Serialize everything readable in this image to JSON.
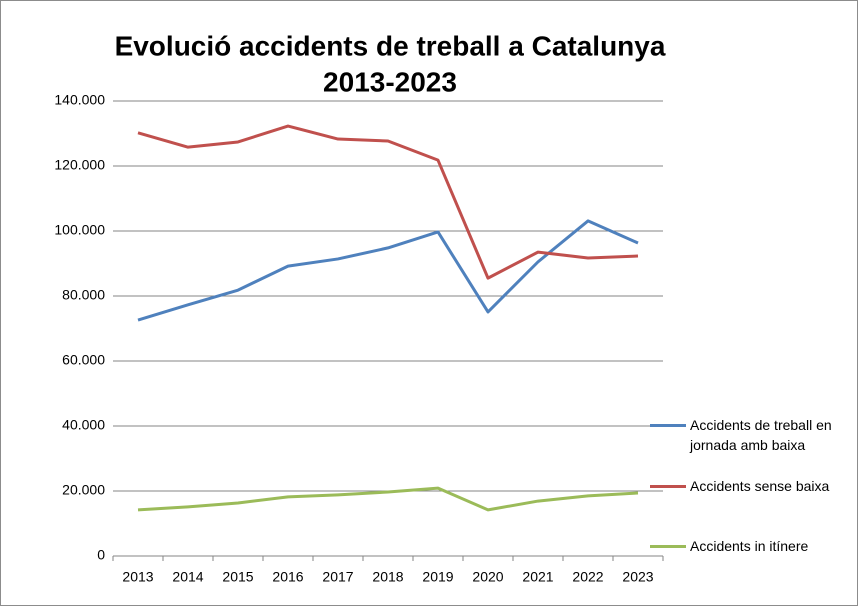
{
  "chart_data": {
    "type": "line",
    "title": [
      "Evolució accidents de treball a Catalunya",
      "2013-2023"
    ],
    "categories": [
      "2013",
      "2014",
      "2015",
      "2016",
      "2017",
      "2018",
      "2019",
      "2020",
      "2021",
      "2022",
      "2023"
    ],
    "series": [
      {
        "name": "Accidents de treball en jornada amb baixa",
        "color": "#4f81bd",
        "values": [
          72600,
          77300,
          81800,
          89200,
          91400,
          94800,
          99700,
          75100,
          90500,
          103100,
          96300
        ]
      },
      {
        "name": "Accidents sense baixa",
        "color": "#c0504d",
        "values": [
          130200,
          125800,
          127400,
          132300,
          128300,
          127700,
          121800,
          85500,
          93500,
          91700,
          92300
        ]
      },
      {
        "name": "Accidents in itínere",
        "color": "#9bbb59",
        "values": [
          14200,
          15100,
          16300,
          18200,
          18800,
          19700,
          20900,
          14200,
          16900,
          18500,
          19400
        ]
      }
    ],
    "ylim": [
      0,
      140000
    ],
    "yticks": [
      0,
      {
        "value": 20000,
        "label": "20.000"
      },
      {
        "value": 40000,
        "label": "40.000"
      },
      {
        "value": 60000,
        "label": "60.000"
      },
      {
        "value": 80000,
        "label": "80.000"
      },
      {
        "value": 100000,
        "label": "100.000"
      },
      {
        "value": 120000,
        "label": "120.000"
      },
      {
        "value": 140000,
        "label": "140.000"
      }
    ],
    "grid": true,
    "legend": "right"
  }
}
